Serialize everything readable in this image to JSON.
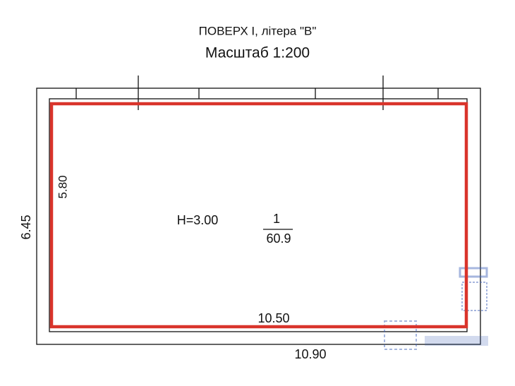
{
  "header": {
    "title": "ПОВЕРХ I, літера \"В\"",
    "scale": "Масштаб 1:200"
  },
  "dimensions": {
    "inner_height": "5.80",
    "outer_height": "6.45",
    "inner_width": "10.50",
    "outer_width": "10.90"
  },
  "room": {
    "height": "H=3.00",
    "number": "1",
    "area": "60.9"
  }
}
